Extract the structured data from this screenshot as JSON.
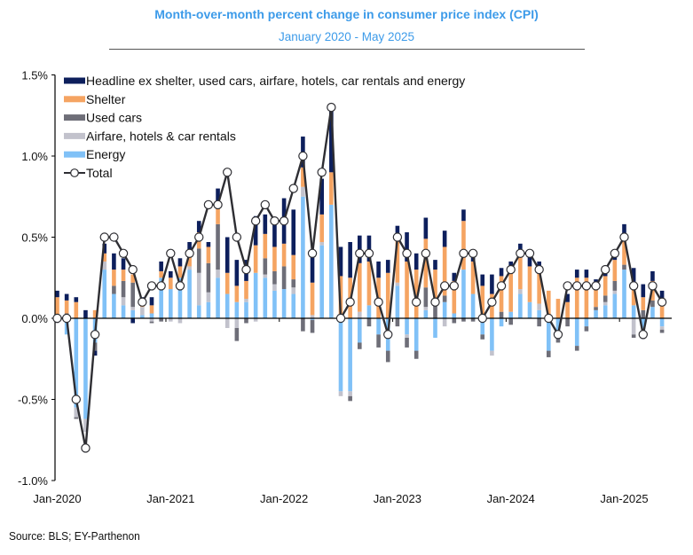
{
  "header": {
    "title": "Month-over-month percent change in consumer price index (CPI)",
    "subtitle": "January 2020 - May 2025"
  },
  "footer": {
    "source": "Source: BLS; EY-Parthenon"
  },
  "chart_data": {
    "type": "bar",
    "stacked": true,
    "title": "Month-over-month percent change in consumer price index (CPI)",
    "subtitle": "January 2020 - May 2025",
    "xlabel": "",
    "ylabel": "",
    "ylim": [
      -1.0,
      1.5
    ],
    "yticks": [
      1.5,
      1.0,
      0.5,
      0.0,
      -0.5,
      -1.0
    ],
    "ytick_labels": [
      "1.5%",
      "1.0%",
      "0.5%",
      "0.0%",
      "-0.5%",
      "-1.0%"
    ],
    "xtick_labels": [
      "Jan-2020",
      "Jan-2021",
      "Jan-2022",
      "Jan-2023",
      "Jan-2024",
      "Jan-2025"
    ],
    "xtick_indices": [
      0,
      12,
      24,
      36,
      48,
      60
    ],
    "grid": false,
    "legend_position": "top-left",
    "colors": {
      "headline_ex": "#0d1f5c",
      "shelter": "#f5a462",
      "used_cars": "#6e6e78",
      "airfare_hotels": "#c2c2cc",
      "energy": "#80c1f7",
      "total_line": "#2e2e33",
      "axis": "#000000"
    },
    "legend": [
      {
        "key": "headline_ex",
        "label": "Headline ex shelter, used cars, airfare, hotels, car rentals and energy"
      },
      {
        "key": "shelter",
        "label": "Shelter"
      },
      {
        "key": "used_cars",
        "label": "Used cars"
      },
      {
        "key": "airfare_hotels",
        "label": "Airfare, hotels & car rentals"
      },
      {
        "key": "energy",
        "label": "Energy"
      },
      {
        "key": "total",
        "label": "Total"
      }
    ],
    "months": [
      "Jan-2020",
      "Feb-2020",
      "Mar-2020",
      "Apr-2020",
      "May-2020",
      "Jun-2020",
      "Jul-2020",
      "Aug-2020",
      "Sep-2020",
      "Oct-2020",
      "Nov-2020",
      "Dec-2020",
      "Jan-2021",
      "Feb-2021",
      "Mar-2021",
      "Apr-2021",
      "May-2021",
      "Jun-2021",
      "Jul-2021",
      "Aug-2021",
      "Sep-2021",
      "Oct-2021",
      "Nov-2021",
      "Dec-2021",
      "Jan-2022",
      "Feb-2022",
      "Mar-2022",
      "Apr-2022",
      "May-2022",
      "Jun-2022",
      "Jul-2022",
      "Aug-2022",
      "Sep-2022",
      "Oct-2022",
      "Nov-2022",
      "Dec-2022",
      "Jan-2023",
      "Feb-2023",
      "Mar-2023",
      "Apr-2023",
      "May-2023",
      "Jun-2023",
      "Jul-2023",
      "Aug-2023",
      "Sep-2023",
      "Oct-2023",
      "Nov-2023",
      "Dec-2023",
      "Jan-2024",
      "Feb-2024",
      "Mar-2024",
      "Apr-2024",
      "May-2024",
      "Jun-2024",
      "Jul-2024",
      "Aug-2024",
      "Sep-2024",
      "Oct-2024",
      "Nov-2024",
      "Dec-2024",
      "Jan-2025",
      "Feb-2025",
      "Mar-2025",
      "Apr-2025",
      "May-2025"
    ],
    "series": [
      {
        "key": "energy",
        "name": "Energy",
        "values": [
          -0.02,
          -0.1,
          -0.55,
          -0.62,
          -0.15,
          0.3,
          0.15,
          0.08,
          0.05,
          0.02,
          0.03,
          0.25,
          0.18,
          0.25,
          0.3,
          0.08,
          0.1,
          0.25,
          0.15,
          0.1,
          0.1,
          0.28,
          0.25,
          0.17,
          0.18,
          0.15,
          0.75,
          -0.01,
          0.45,
          0.7,
          -0.45,
          -0.45,
          -0.15,
          0.08,
          -0.1,
          -0.2,
          0.2,
          -0.1,
          -0.2,
          0.05,
          -0.12,
          0.1,
          0.03,
          0.3,
          0.15,
          -0.1,
          -0.2,
          -0.05,
          0.04,
          0.15,
          0.1,
          0.05,
          -0.2,
          -0.1,
          0.0,
          -0.17,
          -0.05,
          0.05,
          0.08,
          0.15,
          0.3,
          0.08,
          -0.08,
          0.07,
          -0.05
        ]
      },
      {
        "key": "airfare_hotels",
        "name": "Airfare, hotels & car rentals",
        "values": [
          -0.01,
          0.02,
          -0.06,
          -0.08,
          0.0,
          0.05,
          0.0,
          0.05,
          0.02,
          0.05,
          -0.02,
          0.0,
          -0.02,
          -0.03,
          0.02,
          0.2,
          0.06,
          0.05,
          -0.06,
          -0.06,
          0.02,
          -0.02,
          0.02,
          0.04,
          0.0,
          0.04,
          0.06,
          0.02,
          0.02,
          0.0,
          -0.03,
          -0.03,
          0.04,
          0.0,
          0.0,
          0.0,
          0.02,
          -0.02,
          0.0,
          0.02,
          0.0,
          -0.05,
          0.0,
          0.0,
          0.0,
          0.0,
          -0.03,
          0.0,
          0.0,
          0.03,
          0.0,
          0.04,
          0.0,
          -0.02,
          0.0,
          0.0,
          0.0,
          0.0,
          0.02,
          0.02,
          0.0,
          -0.1,
          -0.05,
          0.0,
          -0.02
        ]
      },
      {
        "key": "used_cars",
        "name": "Used cars",
        "values": [
          0.0,
          0.01,
          -0.01,
          0.0,
          -0.05,
          0.0,
          0.05,
          0.1,
          0.15,
          0.0,
          -0.01,
          -0.02,
          0.0,
          0.0,
          0.0,
          0.15,
          0.18,
          0.28,
          0.0,
          -0.08,
          -0.03,
          0.0,
          0.1,
          0.08,
          0.14,
          0.05,
          -0.08,
          -0.08,
          0.0,
          0.0,
          0.0,
          -0.03,
          -0.04,
          -0.05,
          -0.08,
          -0.07,
          -0.05,
          -0.06,
          -0.05,
          0.12,
          0.1,
          0.04,
          -0.03,
          -0.02,
          -0.02,
          -0.03,
          0.0,
          0.04,
          -0.04,
          0.0,
          0.0,
          -0.05,
          -0.04,
          -0.03,
          -0.05,
          -0.03,
          -0.03,
          0.02,
          0.04,
          0.06,
          0.03,
          -0.02,
          0.05,
          0.04,
          -0.02
        ]
      },
      {
        "key": "shelter",
        "name": "Shelter",
        "values": [
          0.13,
          0.08,
          0.1,
          0.0,
          0.05,
          0.05,
          0.1,
          0.07,
          0.05,
          0.04,
          0.05,
          0.04,
          0.07,
          0.07,
          0.1,
          0.1,
          0.1,
          0.1,
          0.13,
          0.1,
          0.11,
          0.17,
          0.15,
          0.15,
          0.14,
          0.15,
          0.12,
          0.2,
          0.17,
          0.2,
          0.26,
          0.25,
          0.3,
          0.27,
          0.25,
          0.28,
          0.3,
          0.35,
          0.3,
          0.3,
          0.2,
          0.3,
          0.2,
          0.3,
          0.2,
          0.2,
          0.15,
          0.22,
          0.25,
          0.2,
          0.22,
          0.2,
          0.17,
          0.12,
          0.1,
          0.25,
          0.25,
          0.12,
          0.12,
          0.13,
          0.17,
          0.14,
          0.08,
          0.12,
          0.1
        ]
      },
      {
        "key": "headline_ex",
        "name": "Headline ex shelter, used cars, airfare, hotels, car rentals and energy",
        "values": [
          0.04,
          0.04,
          0.03,
          0.05,
          -0.03,
          0.06,
          0.1,
          0.07,
          -0.03,
          0.02,
          0.05,
          0.06,
          0.04,
          0.05,
          0.05,
          0.07,
          0.03,
          0.12,
          0.22,
          0.16,
          0.13,
          0.18,
          0.12,
          0.16,
          0.28,
          0.28,
          0.19,
          0.18,
          0.22,
          0.38,
          0.18,
          0.22,
          0.17,
          0.16,
          0.1,
          0.08,
          0.05,
          0.18,
          0.1,
          0.13,
          0.06,
          0.1,
          0.05,
          0.07,
          0.05,
          0.07,
          0.12,
          0.05,
          0.06,
          0.08,
          0.1,
          0.06,
          0.0,
          0.0,
          0.05,
          0.05,
          0.05,
          0.05,
          0.04,
          0.04,
          0.08,
          0.09,
          0.08,
          0.06,
          0.07
        ]
      }
    ],
    "total": [
      0.0,
      0.0,
      -0.5,
      -0.8,
      -0.1,
      0.5,
      0.5,
      0.4,
      0.3,
      0.1,
      0.2,
      0.2,
      0.4,
      0.2,
      0.4,
      0.5,
      0.7,
      0.7,
      0.9,
      0.5,
      0.3,
      0.6,
      0.7,
      0.6,
      0.6,
      0.8,
      1.0,
      0.4,
      0.9,
      1.3,
      0.0,
      0.1,
      0.4,
      0.4,
      0.1,
      -0.1,
      0.5,
      0.4,
      0.1,
      0.4,
      0.1,
      0.2,
      0.2,
      0.4,
      0.4,
      0.0,
      0.1,
      0.2,
      0.3,
      0.4,
      0.4,
      0.3,
      0.0,
      -0.1,
      0.2,
      0.2,
      0.2,
      0.2,
      0.3,
      0.4,
      0.5,
      0.2,
      -0.1,
      0.2,
      0.1
    ],
    "total_corrected_note": ""
  }
}
